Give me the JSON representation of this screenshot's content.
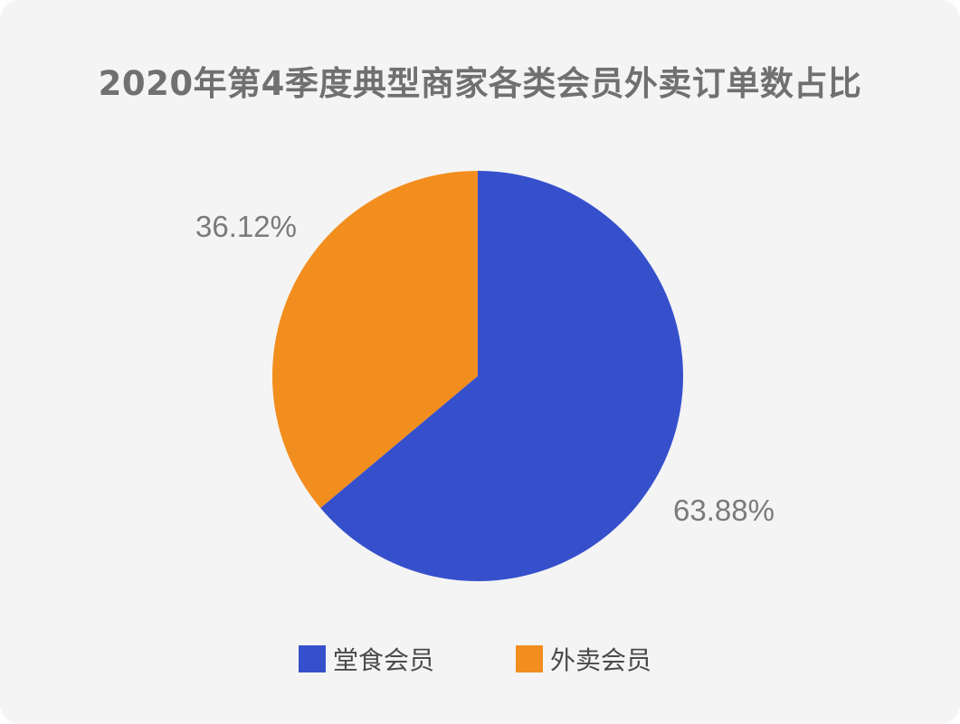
{
  "chart_data": {
    "type": "pie",
    "title": "2020年第4季度典型商家各类会员外卖订单数占比",
    "slices": [
      {
        "label": "堂食会员",
        "value": 63.88,
        "display": "63.88%",
        "color": "#3650cc"
      },
      {
        "label": "外卖会员",
        "value": 36.12,
        "display": "36.12%",
        "color": "#f28e1e"
      }
    ],
    "legend_position": "bottom"
  }
}
